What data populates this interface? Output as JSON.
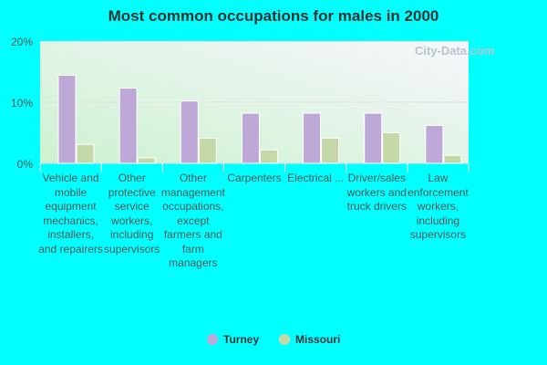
{
  "chart_data": {
    "type": "bar",
    "title": "Most common occupations for males in 2000",
    "categories": [
      "Vehicle and mobile equipment mechanics, installers, and repairers",
      "Other protective service workers, including supervisors",
      "Other management occupations, except farmers and farm managers",
      "Carpenters",
      "Electrical ...",
      "Driver/sales workers and truck drivers",
      "Law enforcement workers, including supervisors"
    ],
    "series": [
      {
        "name": "Turney",
        "color": "#bea8d8",
        "values": [
          14.4,
          12.3,
          10.2,
          8.2,
          8.2,
          8.2,
          6.2
        ]
      },
      {
        "name": "Missouri",
        "color": "#c5d9a8",
        "values": [
          3.1,
          0.9,
          4.1,
          2.2,
          4.1,
          5.0,
          1.3
        ]
      }
    ],
    "yticks": [
      "0%",
      "10%",
      "20%"
    ],
    "ylim": [
      0,
      20
    ],
    "grid": true,
    "legend": "bottom",
    "watermark": "City-Data.com"
  }
}
